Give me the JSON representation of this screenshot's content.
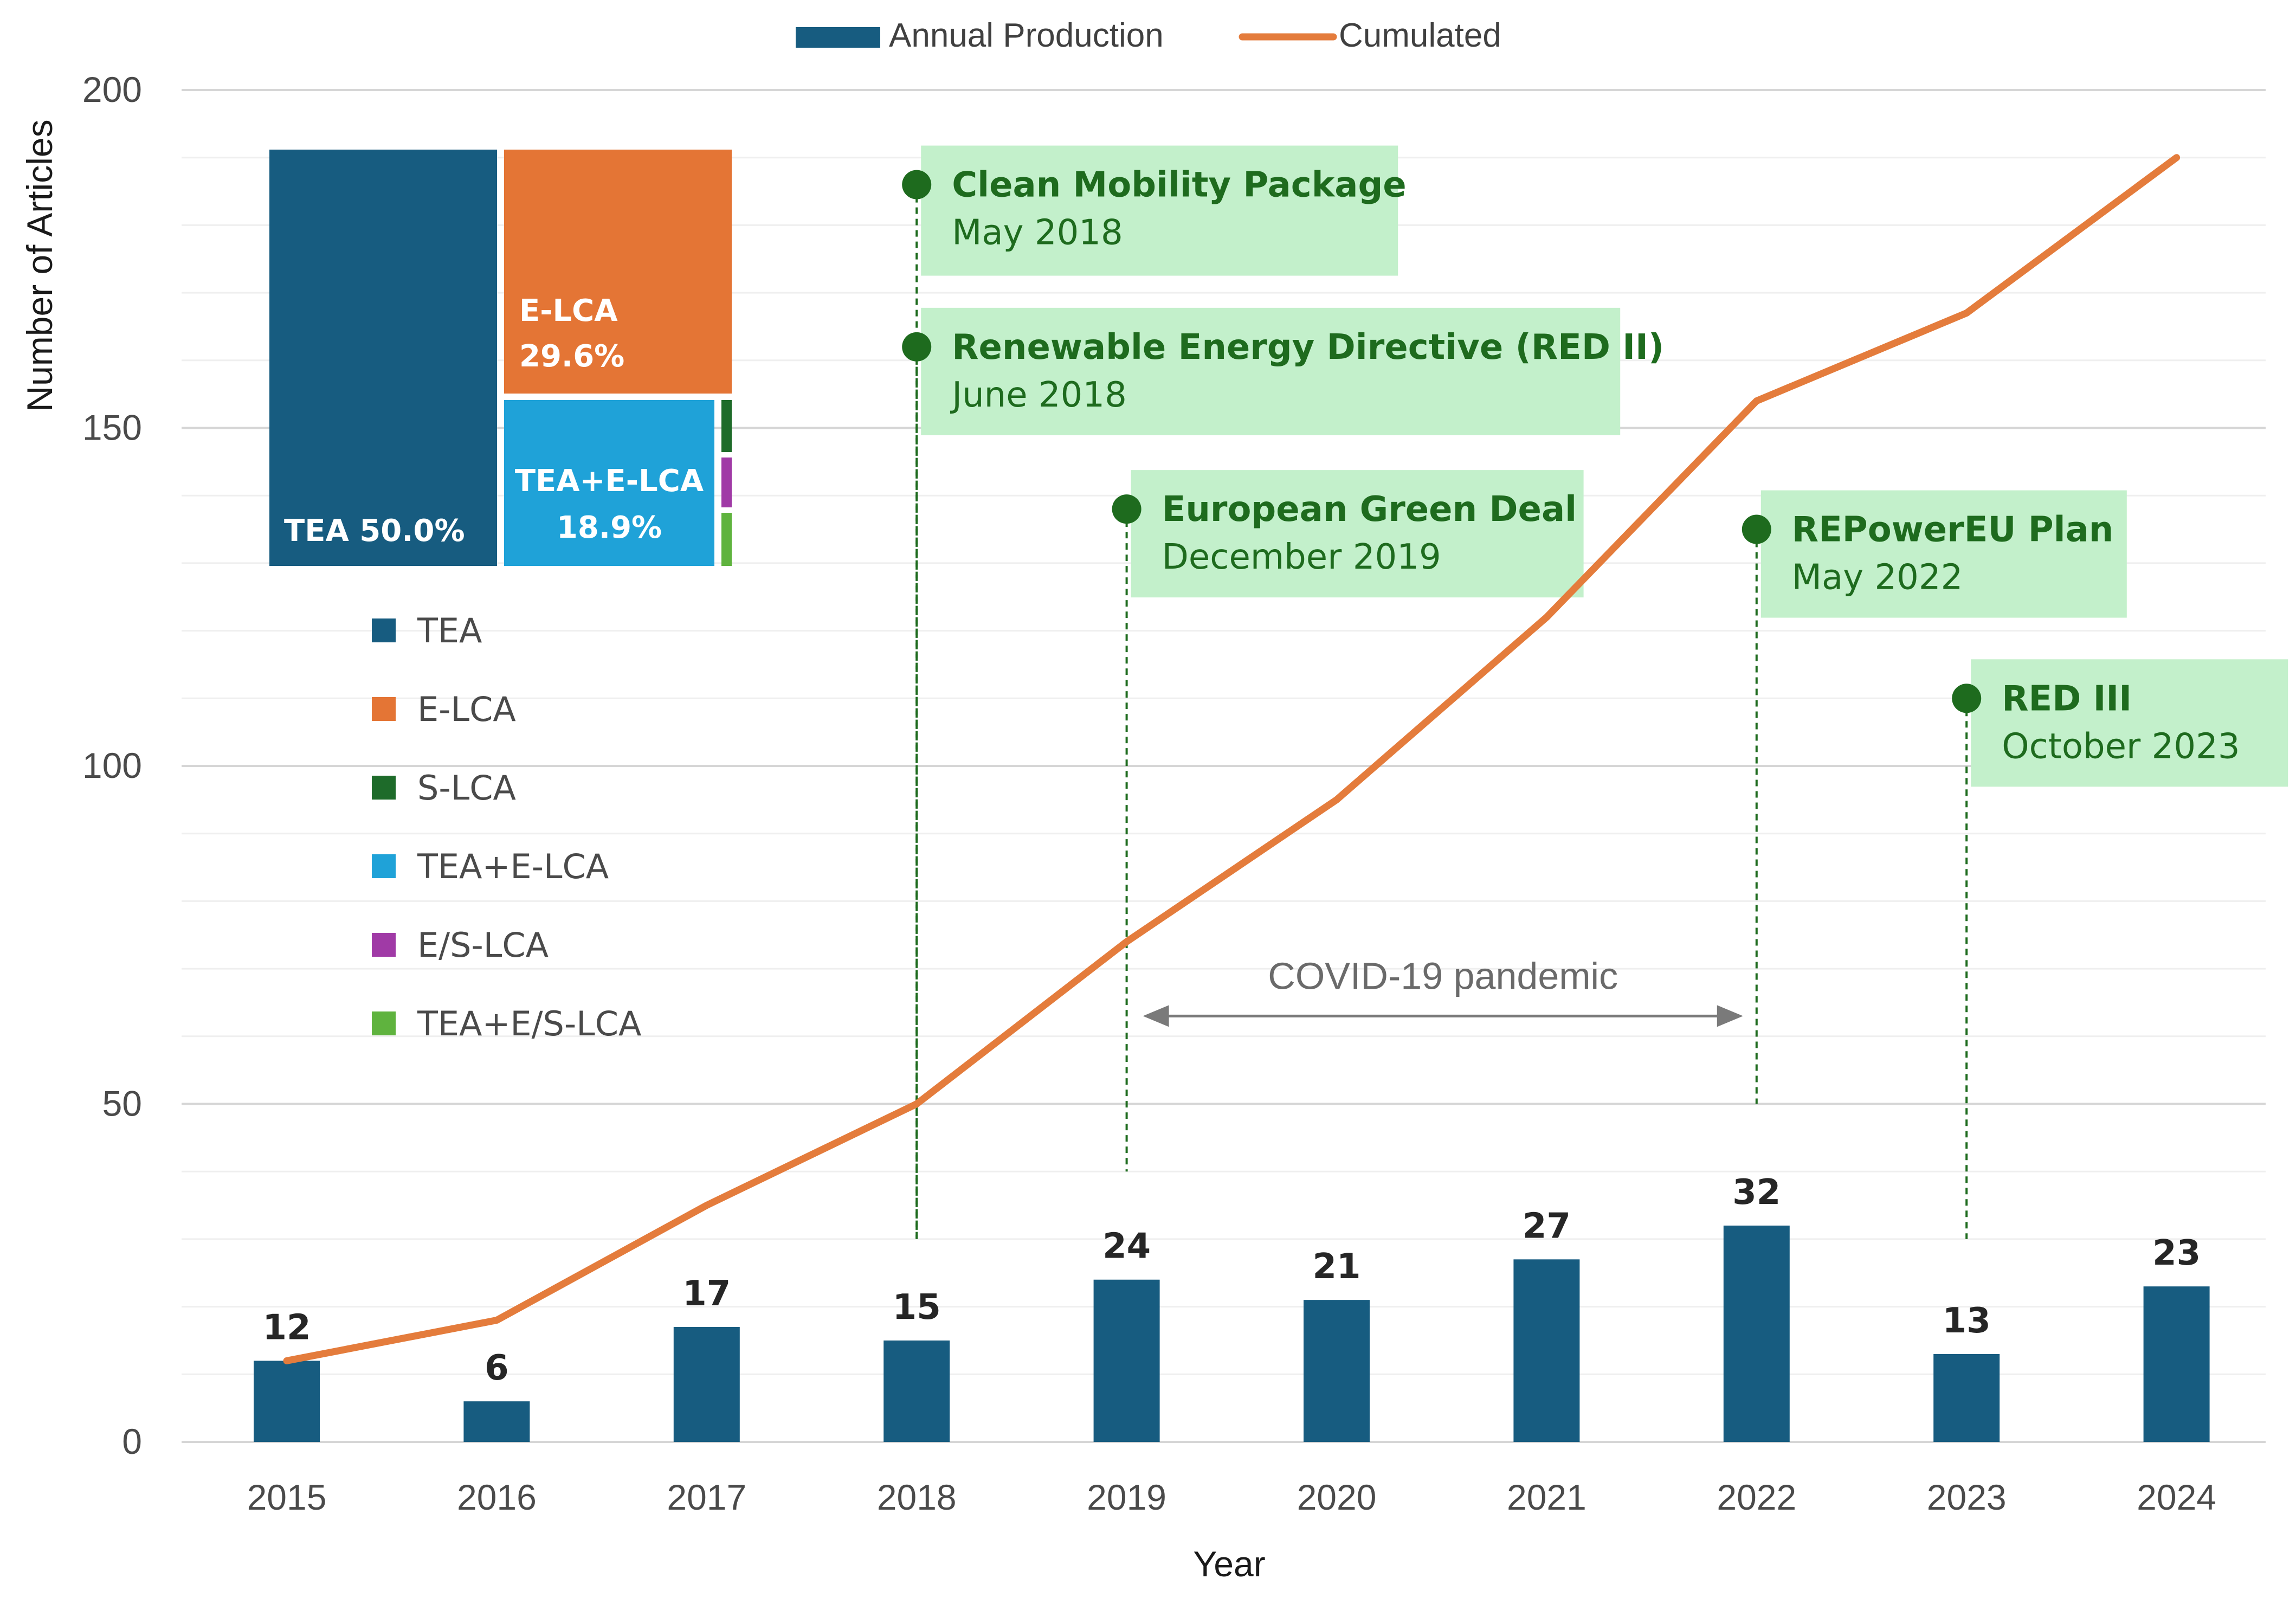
{
  "chart_data": {
    "type": "bar",
    "xlabel": "Year",
    "ylabel": "Number of Articles",
    "ylim": [
      0,
      200
    ],
    "yticks": [
      0,
      50,
      100,
      150,
      200
    ],
    "grid": true,
    "legend_position": "top-center",
    "categories": [
      "2015",
      "2016",
      "2017",
      "2018",
      "2019",
      "2020",
      "2021",
      "2022",
      "2023",
      "2024"
    ],
    "series": [
      {
        "name": "Annual Production",
        "type": "bar",
        "color": "#175c80",
        "values": [
          12,
          6,
          17,
          15,
          24,
          21,
          27,
          32,
          13,
          23
        ],
        "labels": [
          "12",
          "6",
          "17",
          "15",
          "24",
          "21",
          "27",
          "32",
          "13",
          "23"
        ]
      },
      {
        "name": "Cumulated",
        "type": "line",
        "color": "#e47c3c",
        "values": [
          12,
          18,
          35,
          50,
          74,
          95,
          122,
          154,
          167,
          190
        ]
      }
    ],
    "events": [
      {
        "title": "Clean Mobility Package",
        "date": "May 2018",
        "x": 2018.0,
        "y": 186,
        "line_bottom": 30
      },
      {
        "title": "Renewable Energy Directive (RED II)",
        "date": "June 2018",
        "x": 2018.0,
        "y": 162,
        "line_bottom": 30
      },
      {
        "title": "European Green Deal",
        "date": "December 2019",
        "x": 2019.0,
        "y": 138,
        "line_bottom": 40
      },
      {
        "title": "REPowerEU Plan",
        "date": "May 2022",
        "x": 2022.0,
        "y": 135,
        "line_bottom": 50
      },
      {
        "title": "RED III",
        "date": "October 2023",
        "x": 2023.0,
        "y": 110,
        "line_bottom": 30
      }
    ],
    "annotation": {
      "label": "COVID-19 pandemic",
      "from": 2019,
      "to": 2022,
      "y": 63
    },
    "inset_treemap": {
      "type": "treemap",
      "items": [
        {
          "name": "TEA",
          "value": 50.0,
          "label": "TEA 50.0%",
          "color": "#175c80"
        },
        {
          "name": "E-LCA",
          "value": 29.6,
          "label_name": "E-LCA",
          "label_value": "29.6%",
          "color": "#e47535"
        },
        {
          "name": "TEA+E-LCA",
          "value": 18.9,
          "label_name": "TEA+E-LCA",
          "label_value": "18.9%",
          "color": "#1fa2d8"
        },
        {
          "name": "S-LCA",
          "color": "#1e6b2a"
        },
        {
          "name": "E/S-LCA",
          "color": "#a03aa6"
        },
        {
          "name": "TEA+E/S-LCA",
          "color": "#5fb33e"
        }
      ],
      "legend": [
        {
          "name": "TEA",
          "color": "#175c80"
        },
        {
          "name": "E-LCA",
          "color": "#e47535"
        },
        {
          "name": "S-LCA",
          "color": "#1e6b2a"
        },
        {
          "name": "TEA+E-LCA",
          "color": "#1fa2d8"
        },
        {
          "name": "E/S-LCA",
          "color": "#a03aa6"
        },
        {
          "name": "TEA+E/S-LCA",
          "color": "#5fb33e"
        }
      ]
    }
  }
}
